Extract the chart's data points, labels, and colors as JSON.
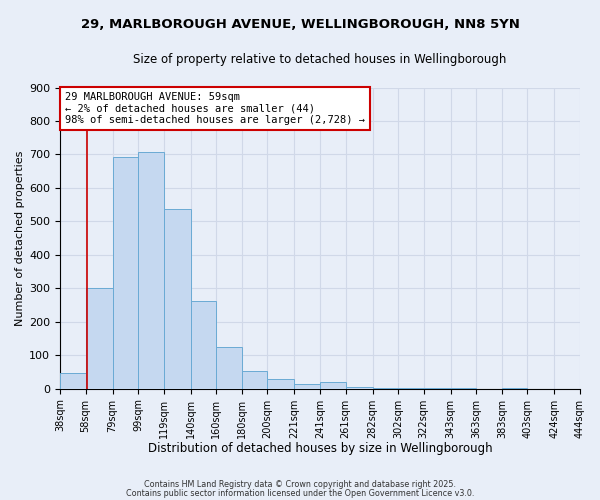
{
  "title": "29, MARLBOROUGH AVENUE, WELLINGBOROUGH, NN8 5YN",
  "subtitle": "Size of property relative to detached houses in Wellingborough",
  "xlabel": "Distribution of detached houses by size in Wellingborough",
  "ylabel": "Number of detached properties",
  "bin_labels": [
    "38sqm",
    "58sqm",
    "79sqm",
    "99sqm",
    "119sqm",
    "140sqm",
    "160sqm",
    "180sqm",
    "200sqm",
    "221sqm",
    "241sqm",
    "261sqm",
    "282sqm",
    "302sqm",
    "322sqm",
    "343sqm",
    "363sqm",
    "383sqm",
    "403sqm",
    "424sqm",
    "444sqm"
  ],
  "bin_edges": [
    38,
    58,
    79,
    99,
    119,
    140,
    160,
    180,
    200,
    221,
    241,
    261,
    282,
    302,
    322,
    343,
    363,
    383,
    403,
    424,
    444
  ],
  "bar_heights": [
    47,
    302,
    693,
    706,
    537,
    263,
    124,
    54,
    30,
    15,
    20,
    5,
    3,
    2,
    1,
    1,
    0,
    1,
    0,
    0,
    0
  ],
  "bar_color": "#c5d8f0",
  "bar_edge_color": "#6aaad4",
  "property_line_x": 59,
  "property_line_color": "#cc0000",
  "ylim": [
    0,
    900
  ],
  "yticks": [
    0,
    100,
    200,
    300,
    400,
    500,
    600,
    700,
    800,
    900
  ],
  "annotation_text": "29 MARLBOROUGH AVENUE: 59sqm\n← 2% of detached houses are smaller (44)\n98% of semi-detached houses are larger (2,728) →",
  "annotation_box_color": "#ffffff",
  "annotation_box_edge_color": "#cc0000",
  "grid_color": "#d0d8e8",
  "background_color": "#e8eef8",
  "footer_line1": "Contains HM Land Registry data © Crown copyright and database right 2025.",
  "footer_line2": "Contains public sector information licensed under the Open Government Licence v3.0."
}
